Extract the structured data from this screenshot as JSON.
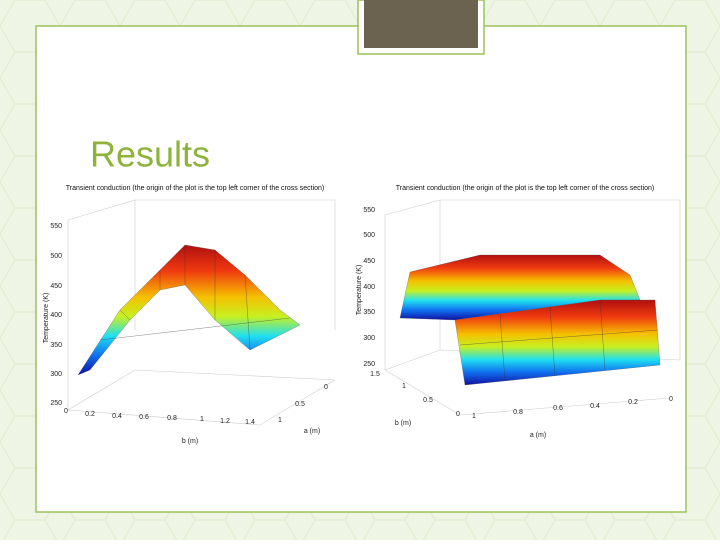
{
  "slide": {
    "title": "Results"
  },
  "plots": [
    {
      "title": "Transient conduction (the origin of the plot is the top left corner of the cross section)",
      "z_label": "Temperature (K)",
      "z_ticks": [
        550,
        500,
        450,
        400,
        350,
        300,
        250
      ],
      "b_label": "b (m)",
      "b_ticks": [
        0,
        0.2,
        0.4,
        0.6,
        0.8,
        1,
        1.2,
        1.4
      ],
      "a_label": "a (m)",
      "a_ticks": [
        0,
        0.5,
        1
      ]
    },
    {
      "title": "Transient conduction (the origin of the plot is the top left corner of the cross section)",
      "z_label": "Temperature (K)",
      "z_ticks": [
        550,
        500,
        450,
        400,
        350,
        300,
        250
      ],
      "b_label": "b (m)",
      "b_ticks": [
        1.5,
        1,
        0.5,
        0
      ],
      "a_label": "a (m)",
      "a_ticks": [
        1,
        0.8,
        0.6,
        0.4,
        0.2,
        0
      ]
    }
  ]
}
